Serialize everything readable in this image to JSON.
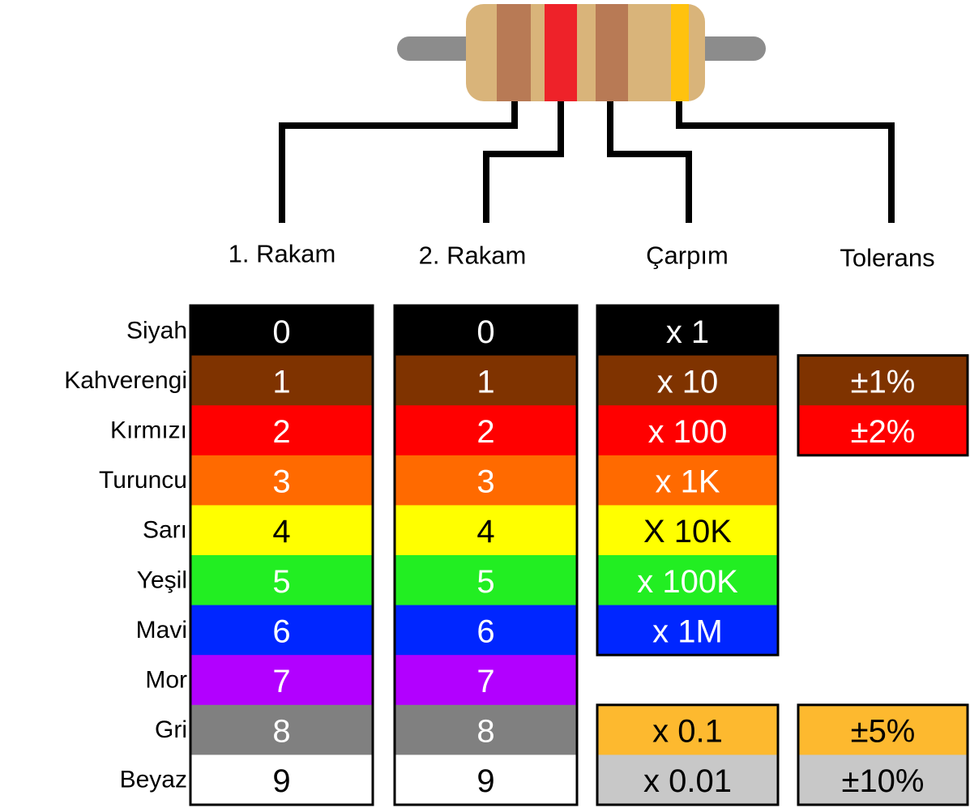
{
  "columns": [
    "1. Rakam",
    "2. Rakam",
    "Çarpım",
    "Tolerans"
  ],
  "rows": [
    {
      "label": "Siyah",
      "digit1": 0,
      "digit2": 0,
      "multiplier": "x 1"
    },
    {
      "label": "Kahverengi",
      "digit1": 1,
      "digit2": 1,
      "multiplier": "x 10",
      "tolerance": "±1%"
    },
    {
      "label": "Kırmızı",
      "digit1": 2,
      "digit2": 2,
      "multiplier": "x 100",
      "tolerance": "±2%"
    },
    {
      "label": "Turuncu",
      "digit1": 3,
      "digit2": 3,
      "multiplier": "x 1K"
    },
    {
      "label": "Sarı",
      "digit1": 4,
      "digit2": 4,
      "multiplier": "X 10K"
    },
    {
      "label": "Yeşil",
      "digit1": 5,
      "digit2": 5,
      "multiplier": "x 100K"
    },
    {
      "label": "Mavi",
      "digit1": 6,
      "digit2": 6,
      "multiplier": "x 1M"
    },
    {
      "label": "Mor",
      "digit1": 7,
      "digit2": 7
    },
    {
      "label": "Gri",
      "digit1": 8,
      "digit2": 8,
      "multiplier": "x 0.1",
      "tolerance": "±5%"
    },
    {
      "label": "Beyaz",
      "digit1": 9,
      "digit2": 9,
      "multiplier": "x 0.01",
      "tolerance": "±10%"
    }
  ]
}
